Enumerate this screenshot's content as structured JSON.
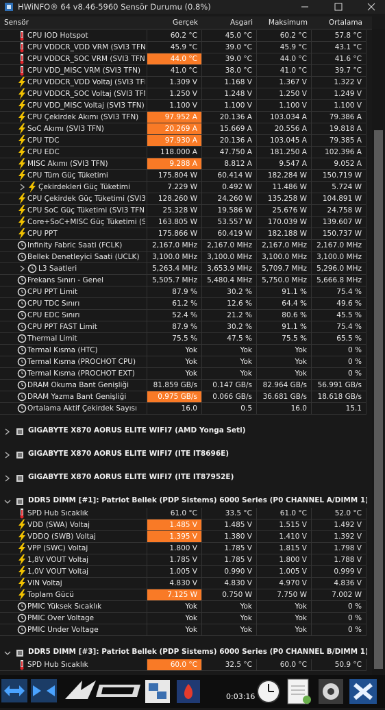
{
  "window": {
    "title": "HWiNFO® 64 v8.46-5960 Sensör Durumu (0.8%)"
  },
  "table": {
    "columns": [
      "Sensör",
      "Gerçek",
      "Asgari",
      "Maksimum",
      "Ortalama"
    ],
    "rows": [
      {
        "icon": "temp",
        "label": "CPU IOD Hotspot",
        "cells": [
          "60.2 °C",
          "45.0 °C",
          "60.2 °C",
          "57.8 °C"
        ]
      },
      {
        "icon": "temp",
        "label": "CPU VDDCR_VDD VRM (SVI3 TFN)",
        "cells": [
          "45.9 °C",
          "39.0 °C",
          "45.9 °C",
          "43.1 °C"
        ]
      },
      {
        "icon": "temp",
        "label": "CPU VDDCR_SOC VRM (SVI3 TFN)",
        "cells": [
          "44.0 °C",
          "39.0 °C",
          "44.0 °C",
          "41.6 °C"
        ],
        "highlight": true
      },
      {
        "icon": "temp",
        "label": "CPU VDD_MISC VRM (SVI3 TFN)",
        "cells": [
          "41.0 °C",
          "38.0 °C",
          "41.0 °C",
          "39.7 °C"
        ]
      },
      {
        "icon": "volt",
        "label": "CPU VDDCR_VDD Voltaj (SVI3 TFN)",
        "cells": [
          "1.309 V",
          "1.168 V",
          "1.367 V",
          "1.322 V"
        ]
      },
      {
        "icon": "volt",
        "label": "CPU VDDCR_SOC Voltaj (SVI3 TFN)",
        "cells": [
          "1.250 V",
          "1.248 V",
          "1.250 V",
          "1.249 V"
        ]
      },
      {
        "icon": "volt",
        "label": "CPU VDD_MISC Voltaj (SVI3 TFN)",
        "cells": [
          "1.100 V",
          "1.100 V",
          "1.100 V",
          "1.100 V"
        ]
      },
      {
        "icon": "volt",
        "label": "CPU Çekirdek Akımı (SVI3 TFN)",
        "cells": [
          "97.952 A",
          "20.136 A",
          "103.034 A",
          "79.386 A"
        ],
        "highlight": true
      },
      {
        "icon": "volt",
        "label": "SoC Akımı (SVI3 TFN)",
        "cells": [
          "20.269 A",
          "15.669 A",
          "20.556 A",
          "19.818 A"
        ],
        "highlight": true
      },
      {
        "icon": "volt",
        "label": "CPU TDC",
        "cells": [
          "97.930 A",
          "20.136 A",
          "103.045 A",
          "79.385 A"
        ],
        "highlight": true
      },
      {
        "icon": "volt",
        "label": "CPU EDC",
        "cells": [
          "118.000 A",
          "47.750 A",
          "181.250 A",
          "102.396 A"
        ]
      },
      {
        "icon": "volt",
        "label": "MISC Akımı (SVI3 TFN)",
        "cells": [
          "9.288 A",
          "8.812 A",
          "9.547 A",
          "9.052 A"
        ],
        "highlight": true
      },
      {
        "icon": "volt",
        "label": "CPU Tüm Güç Tüketimi",
        "cells": [
          "175.804 W",
          "60.414 W",
          "182.284 W",
          "150.719 W"
        ]
      },
      {
        "icon": "volt",
        "label": "Çekirdekleri Güç Tüketimi",
        "cells": [
          "7.229 W",
          "0.492 W",
          "11.486 W",
          "5.724 W"
        ],
        "sub": true
      },
      {
        "icon": "volt",
        "label": "CPU Çekirdek Güç Tüketimi (SVI3 ...",
        "cells": [
          "128.260 W",
          "24.260 W",
          "135.258 W",
          "104.891 W"
        ]
      },
      {
        "icon": "volt",
        "label": "CPU SoC Güç Tüketimi (SVI3 TFN)",
        "cells": [
          "25.328 W",
          "19.586 W",
          "25.676 W",
          "24.758 W"
        ]
      },
      {
        "icon": "volt",
        "label": "Core+SoC+MISC Güç Tüketimi (S...",
        "cells": [
          "163.805 W",
          "53.557 W",
          "170.039 W",
          "139.607 W"
        ]
      },
      {
        "icon": "volt",
        "label": "CPU PPT",
        "cells": [
          "175.866 W",
          "60.419 W",
          "182.188 W",
          "150.737 W"
        ]
      },
      {
        "icon": "clock",
        "label": "Infinity Fabric Saati (FCLK)",
        "cells": [
          "2,167.0 MHz",
          "2,167.0 MHz",
          "2,167.0 MHz",
          "2,167.0 MHz"
        ]
      },
      {
        "icon": "clock",
        "label": "Bellek Denetleyici Saati (UCLK)",
        "cells": [
          "3,100.0 MHz",
          "3,100.0 MHz",
          "3,100.0 MHz",
          "3,100.0 MHz"
        ]
      },
      {
        "icon": "clock",
        "label": "L3 Saatleri",
        "cells": [
          "5,263.4 MHz",
          "3,653.9 MHz",
          "5,709.7 MHz",
          "5,296.0 MHz"
        ],
        "sub": true
      },
      {
        "icon": "clock",
        "label": "Frekans Sınırı - Genel",
        "cells": [
          "5,505.7 MHz",
          "5,480.4 MHz",
          "5,750.0 MHz",
          "5,666.8 MHz"
        ]
      },
      {
        "icon": "clock",
        "label": "CPU PPT Limit",
        "cells": [
          "87.9 %",
          "30.2 %",
          "91.1 %",
          "75.4 %"
        ]
      },
      {
        "icon": "clock",
        "label": "CPU TDC Sınırı",
        "cells": [
          "61.2 %",
          "12.6 %",
          "64.4 %",
          "49.6 %"
        ]
      },
      {
        "icon": "clock",
        "label": "CPU EDC Sınırı",
        "cells": [
          "52.4 %",
          "21.2 %",
          "80.6 %",
          "45.5 %"
        ]
      },
      {
        "icon": "clock",
        "label": "CPU PPT FAST Limit",
        "cells": [
          "87.9 %",
          "30.2 %",
          "91.1 %",
          "75.4 %"
        ]
      },
      {
        "icon": "clock",
        "label": "Thermal Limit",
        "cells": [
          "75.5 %",
          "47.5 %",
          "75.5 %",
          "65.5 %"
        ]
      },
      {
        "icon": "clock",
        "label": "Termal Kısma (HTC)",
        "cells": [
          "Yok",
          "Yok",
          "Yok",
          "0 %"
        ]
      },
      {
        "icon": "clock",
        "label": "Termal Kısma (PROCHOT CPU)",
        "cells": [
          "Yok",
          "Yok",
          "Yok",
          "0 %"
        ]
      },
      {
        "icon": "clock",
        "label": "Termal Kısma (PROCHOT EXT)",
        "cells": [
          "Yok",
          "Yok",
          "Yok",
          "0 %"
        ]
      },
      {
        "icon": "clock",
        "label": "DRAM Okuma Bant Genişliği",
        "cells": [
          "81.859 GB/s",
          "0.147 GB/s",
          "82.964 GB/s",
          "56.991 GB/s"
        ]
      },
      {
        "icon": "clock",
        "label": "DRAM Yazma Bant Genişliği",
        "cells": [
          "0.975 GB/s",
          "0.066 GB/s",
          "36.681 GB/s",
          "18.618 GB/s"
        ],
        "highlight": true
      },
      {
        "icon": "clock",
        "label": "Ortalama Aktif Çekirdek Sayısı",
        "cells": [
          "16.0",
          "0.5",
          "16.0",
          "15.1"
        ]
      },
      {
        "group": "GIGABYTE X870 AORUS ELITE WIFI7 (AMD Yonga Seti)",
        "expanded": false
      },
      {
        "group": "GIGABYTE X870 AORUS ELITE WIFI7 (ITE IT8696E)",
        "expanded": false
      },
      {
        "group": "GIGABYTE X870 AORUS ELITE WIFI7 (ITE IT87952E)",
        "expanded": false
      },
      {
        "group": "DDR5 DIMM [#1]: Patriot Bellek (PDP Sistems) 6000 Series (P0 CHANNEL A/DIMM 1)",
        "expanded": true
      },
      {
        "icon": "temp",
        "label": "SPD Hub Sıcaklık",
        "cells": [
          "61.0 °C",
          "33.5 °C",
          "61.0 °C",
          "52.0 °C"
        ]
      },
      {
        "icon": "volt",
        "label": "VDD (SWA) Voltaj",
        "cells": [
          "1.485 V",
          "1.485 V",
          "1.515 V",
          "1.492 V"
        ],
        "highlight": true
      },
      {
        "icon": "volt",
        "label": "VDDQ (SWB) Voltaj",
        "cells": [
          "1.395 V",
          "1.380 V",
          "1.410 V",
          "1.392 V"
        ],
        "highlight": true
      },
      {
        "icon": "volt",
        "label": "VPP (SWC) Voltaj",
        "cells": [
          "1.800 V",
          "1.785 V",
          "1.815 V",
          "1.798 V"
        ]
      },
      {
        "icon": "volt",
        "label": "1,8V VOUT Voltaj",
        "cells": [
          "1.785 V",
          "1.785 V",
          "1.800 V",
          "1.788 V"
        ]
      },
      {
        "icon": "volt",
        "label": "1,0V VOUT Voltaj",
        "cells": [
          "1.005 V",
          "0.990 V",
          "1.005 V",
          "0.999 V"
        ]
      },
      {
        "icon": "volt",
        "label": "VIN Voltaj",
        "cells": [
          "4.830 V",
          "4.830 V",
          "4.970 V",
          "4.836 V"
        ]
      },
      {
        "icon": "volt",
        "label": "Toplam Gücü",
        "cells": [
          "7.125 W",
          "0.750 W",
          "7.750 W",
          "7.002 W"
        ],
        "highlight": true
      },
      {
        "icon": "clock",
        "label": "PMIC Yüksek Sıcaklık",
        "cells": [
          "Yok",
          "Yok",
          "Yok",
          "0 %"
        ]
      },
      {
        "icon": "clock",
        "label": "PMIC Over Voltage",
        "cells": [
          "Yok",
          "Yok",
          "Yok",
          "0 %"
        ]
      },
      {
        "icon": "clock",
        "label": "PMIC Under Voltage",
        "cells": [
          "Yok",
          "Yok",
          "Yok",
          "0 %"
        ]
      },
      {
        "group": "DDR5 DIMM [#3]: Patriot Bellek (PDP Sistems) 6000 Series (P0 CHANNEL B/DIMM 1)",
        "expanded": true
      },
      {
        "icon": "temp",
        "label": "SPD Hub Sıcaklık",
        "cells": [
          "60.0 °C",
          "32.5 °C",
          "60.0 °C",
          "50.9 °C"
        ],
        "highlight": true
      }
    ]
  },
  "toolbar": {
    "time": "0:03:16"
  }
}
